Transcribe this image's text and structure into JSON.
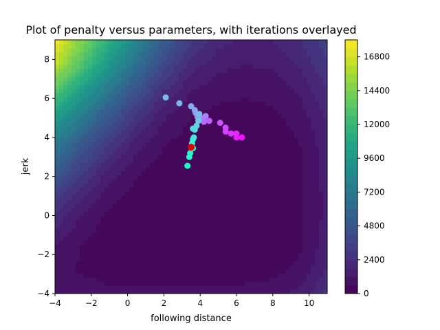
{
  "chart_data": {
    "type": "contour",
    "title": "Plot of penalty versus parameters, with iterations overlayed",
    "xlabel": "following distance",
    "ylabel": "jerk",
    "xlim": [
      -4,
      11
    ],
    "ylim": [
      -4,
      9
    ],
    "x_ticks": [
      "−4",
      "−2",
      "0",
      "2",
      "4",
      "6",
      "8",
      "10"
    ],
    "x_tick_values": [
      -4,
      -2,
      0,
      2,
      4,
      6,
      8,
      10
    ],
    "y_ticks": [
      "−4",
      "−2",
      "0",
      "2",
      "4",
      "6",
      "8"
    ],
    "y_tick_values": [
      -4,
      -2,
      0,
      2,
      4,
      6,
      8
    ],
    "colorbar": {
      "colormap": "viridis",
      "min": 0,
      "max": 18000,
      "ticks": [
        "0",
        "2400",
        "4800",
        "7200",
        "9600",
        "12000",
        "14400",
        "16800"
      ],
      "tick_values": [
        0,
        2400,
        4800,
        7200,
        9600,
        12000,
        14400,
        16800
      ]
    },
    "contour_levels": [
      0,
      600,
      1200,
      1800,
      2400,
      3000,
      3600,
      4200,
      4800,
      5400,
      6000,
      6600,
      7200,
      7800,
      8400,
      9000,
      9600,
      10200,
      10800,
      11400,
      12000,
      12600,
      13200,
      13800,
      14400,
      15000,
      15600,
      16200,
      16800,
      17400,
      18000
    ],
    "penalty_grid_approx": {
      "x": [
        -4,
        -2.5,
        -1,
        0.5,
        2,
        3.5,
        5,
        6.5,
        8,
        9.5,
        11
      ],
      "y": [
        -4,
        -2.7,
        -1.4,
        -0.1,
        1.2,
        2.5,
        3.8,
        5.1,
        6.4,
        7.7,
        9
      ],
      "z": [
        [
          1200,
          900,
          700,
          700,
          700,
          700,
          700,
          800,
          900,
          1400,
          2600
        ],
        [
          800,
          500,
          400,
          300,
          300,
          300,
          300,
          300,
          400,
          700,
          1800
        ],
        [
          1300,
          600,
          300,
          200,
          150,
          150,
          150,
          150,
          200,
          500,
          1500
        ],
        [
          2200,
          1100,
          400,
          200,
          150,
          150,
          150,
          150,
          200,
          500,
          1400
        ],
        [
          3600,
          2000,
          900,
          350,
          200,
          150,
          150,
          150,
          200,
          500,
          1400
        ],
        [
          5400,
          3400,
          1800,
          800,
          350,
          200,
          150,
          150,
          200,
          500,
          1500
        ],
        [
          7600,
          5200,
          3100,
          1600,
          700,
          300,
          200,
          200,
          250,
          600,
          1600
        ],
        [
          10200,
          7400,
          4900,
          2800,
          1300,
          600,
          400,
          350,
          450,
          900,
          1900
        ],
        [
          13200,
          10000,
          7100,
          4500,
          2400,
          1200,
          800,
          700,
          800,
          1300,
          2400
        ],
        [
          16300,
          12800,
          9500,
          6500,
          3900,
          2100,
          1400,
          1200,
          1300,
          1900,
          2900
        ],
        [
          17800,
          14600,
          11300,
          8200,
          5300,
          3100,
          2000,
          1700,
          1800,
          2400,
          3400
        ]
      ]
    },
    "iterations": [
      {
        "x": 6.3,
        "y": 4.0
      },
      {
        "x": 6.0,
        "y": 4.0
      },
      {
        "x": 6.0,
        "y": 4.2
      },
      {
        "x": 5.7,
        "y": 4.2
      },
      {
        "x": 5.4,
        "y": 4.3
      },
      {
        "x": 5.4,
        "y": 4.5
      },
      {
        "x": 5.1,
        "y": 4.75
      },
      {
        "x": 4.5,
        "y": 4.85
      },
      {
        "x": 4.2,
        "y": 4.8
      },
      {
        "x": 4.2,
        "y": 5.0
      },
      {
        "x": 4.3,
        "y": 5.1
      },
      {
        "x": 4.0,
        "y": 5.0
      },
      {
        "x": 3.85,
        "y": 5.05
      },
      {
        "x": 3.75,
        "y": 5.25
      },
      {
        "x": 3.7,
        "y": 5.4
      },
      {
        "x": 3.5,
        "y": 5.6
      },
      {
        "x": 2.85,
        "y": 5.75
      },
      {
        "x": 2.1,
        "y": 6.05
      },
      {
        "x": 3.95,
        "y": 5.2
      },
      {
        "x": 3.9,
        "y": 4.85
      },
      {
        "x": 3.8,
        "y": 4.6
      },
      {
        "x": 3.7,
        "y": 4.4
      },
      {
        "x": 3.6,
        "y": 4.45
      },
      {
        "x": 3.65,
        "y": 4.0
      },
      {
        "x": 3.6,
        "y": 3.9
      },
      {
        "x": 3.55,
        "y": 3.7
      },
      {
        "x": 3.6,
        "y": 3.45
      },
      {
        "x": 3.45,
        "y": 3.2
      },
      {
        "x": 3.4,
        "y": 3.0
      },
      {
        "x": 3.3,
        "y": 2.55
      }
    ],
    "final_point": {
      "x": 3.5,
      "y": 3.5
    },
    "final_point_color": "#e00000",
    "iteration_colormap": "rainbow",
    "grid": false,
    "legend": "none"
  }
}
